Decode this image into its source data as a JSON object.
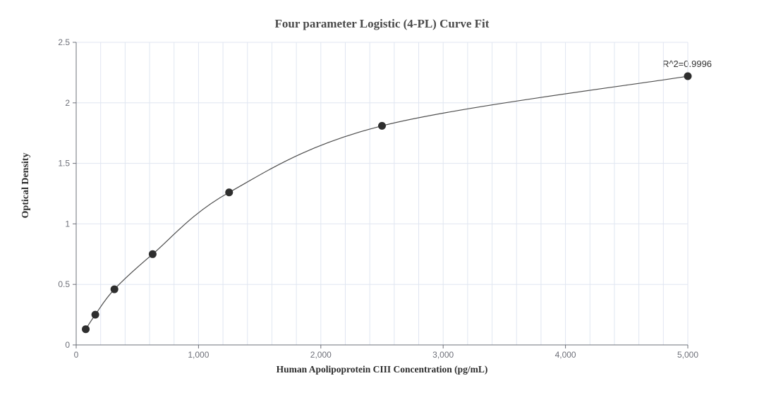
{
  "title": "Four parameter Logistic (4-PL) Curve Fit",
  "axes": {
    "x_label": "Human Apolipoprotein CIII Concentration (pg/mL)",
    "y_label": "Optical Density"
  },
  "annotation": {
    "r_squared_label": "R^2=0.9996"
  },
  "colors": {
    "background": "#ffffff",
    "axis": "#6E7079",
    "tick_label": "#6E7079",
    "grid": "#E0E6F1",
    "curve": "#4d4d4d",
    "point": "#2e2e2e",
    "title_text": "#4a4a4a",
    "axis_name_text": "#2d2d2d",
    "annotation_text": "#333333"
  },
  "chart_data": {
    "type": "scatter",
    "title": "Four parameter Logistic (4-PL) Curve Fit",
    "xlabel": "Human Apolipoprotein CIII Concentration (pg/mL)",
    "ylabel": "Optical Density",
    "x": [
      78.125,
      156.25,
      312.5,
      625,
      1250,
      2500,
      5000
    ],
    "y": [
      0.13,
      0.25,
      0.46,
      0.75,
      1.26,
      1.81,
      2.22
    ],
    "fit": "4PL logistic curve through all points, drawn from first to last point",
    "r_squared": 0.9996,
    "annotations": [
      "R^2=0.9996"
    ],
    "xlim": [
      0,
      5000
    ],
    "ylim": [
      0,
      2.5
    ],
    "x_major_ticks": [
      0,
      1000,
      2000,
      3000,
      4000,
      5000
    ],
    "x_tick_labels": [
      "0",
      "1,000",
      "2,000",
      "3,000",
      "4,000",
      "5,000"
    ],
    "x_minor_grid_step": 200,
    "y_ticks": [
      0,
      0.5,
      1,
      1.5,
      2,
      2.5
    ],
    "y_tick_labels": [
      "0",
      "0.5",
      "1",
      "1.5",
      "2",
      "2.5"
    ],
    "grid": "vertical gridlines every 200 pg/mL, horizontal gridlines every 0.5 OD",
    "legend": "none"
  }
}
